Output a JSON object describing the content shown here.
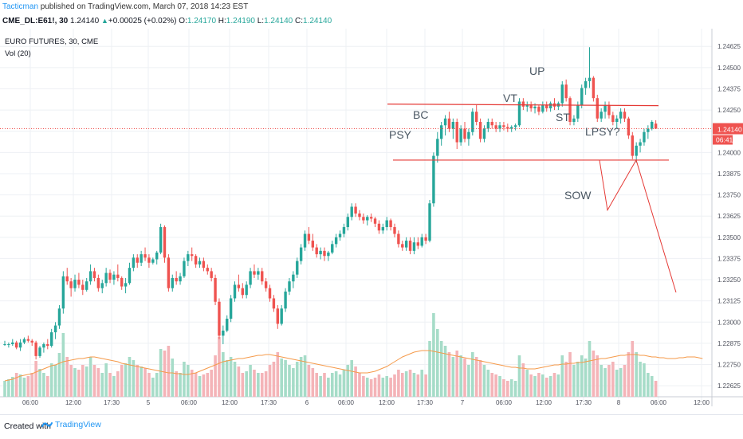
{
  "header": {
    "author": "Tacticman",
    "published": " published on TradingView.com, March 07, 2018 14:23 EST",
    "symbol": "CME_DL:E61!, 30",
    "last": "1.24140",
    "change": "+0.00025 (+0.02%)",
    "o_label": "O:",
    "o": "1.24170",
    "h_label": "H:",
    "h": "1.24190",
    "l_label": "L:",
    "l": "1.24140",
    "c_label": "C:",
    "c": "1.24140"
  },
  "footer": {
    "created": "Created with",
    "brand": "TradingView"
  },
  "colors": {
    "up": "#26a69a",
    "down": "#ef5350",
    "vol_up": "#a6dcc8",
    "vol_down": "#f4b4b8",
    "ma": "#f59a4a",
    "annotation": "#e53935",
    "price_line": "#ef5350"
  },
  "chart_data": {
    "type": "candlestick",
    "title": "EURO FUTURES, 30, CME",
    "volume_label": "Vol (20)",
    "y_ticks": [
      "1.24625",
      "1.24500",
      "1.24375",
      "1.24250",
      "1.24125",
      "1.24000",
      "1.23875",
      "1.23750",
      "1.23625",
      "1.23500",
      "1.23375",
      "1.23250",
      "1.23125",
      "1.23000",
      "1.22875",
      "1.22750",
      "1.22625"
    ],
    "ylim": [
      1.2256,
      1.2472
    ],
    "x_ticks": [
      "06:00",
      "12:00",
      "17:30",
      "5",
      "06:00",
      "12:00",
      "17:30",
      "6",
      "06:00",
      "12:00",
      "17:30",
      "7",
      "06:00",
      "12:00",
      "17:30",
      "8",
      "06:00",
      "12:00"
    ],
    "last_price": "1.24140",
    "countdown": "06:41",
    "annotations": [
      "PSY",
      "BC",
      "VT",
      "UP",
      "ST",
      "LPSY?",
      "SOW"
    ],
    "resistance_level": 1.24285,
    "support_level": 1.23955,
    "projection": [
      1.23955,
      1.2366,
      1.23955,
      1.23175
    ],
    "volume_ma": [
      20,
      21,
      22,
      24,
      26,
      27,
      28,
      29,
      31,
      33,
      35,
      37,
      39,
      40,
      42,
      44,
      45,
      46,
      47,
      48,
      48,
      49,
      50,
      50,
      49,
      48,
      47,
      46,
      45,
      44,
      42,
      41,
      40,
      39,
      38,
      37,
      36,
      35,
      34,
      33,
      32,
      31,
      30,
      30,
      29,
      29,
      28,
      28,
      29,
      30,
      32,
      34,
      36,
      38,
      40,
      42,
      44,
      45,
      46,
      47,
      48,
      48,
      49,
      50,
      51,
      52,
      52,
      53,
      53,
      52,
      51,
      50,
      49,
      48,
      47,
      46,
      45,
      44,
      43,
      42,
      41,
      40,
      39,
      38,
      37,
      36,
      35,
      34,
      33,
      32,
      31,
      30,
      30,
      30,
      31,
      32,
      34,
      36,
      38,
      41,
      44,
      47,
      50,
      52,
      54,
      56,
      57,
      58,
      58,
      58,
      57,
      56,
      55,
      54,
      53,
      52,
      51,
      50,
      49,
      48,
      47,
      46,
      45,
      44,
      43,
      42,
      41,
      40,
      39,
      38,
      37,
      37,
      36,
      36,
      35,
      35,
      35,
      36,
      37,
      38,
      39,
      40,
      40,
      41,
      41,
      42,
      42,
      43,
      43,
      44,
      45,
      46,
      47,
      48,
      48,
      49,
      50,
      51,
      52,
      52,
      53,
      53,
      53,
      52,
      52,
      51,
      50,
      50,
      49,
      49,
      48,
      48,
      48,
      49,
      49,
      50,
      50,
      50,
      49,
      48
    ],
    "candles": [
      [
        1.2287,
        1.2289,
        1.2286,
        1.2287,
        20
      ],
      [
        1.2287,
        1.2288,
        1.2285,
        1.2287,
        22
      ],
      [
        1.2287,
        1.229,
        1.2286,
        1.2288,
        25
      ],
      [
        1.2288,
        1.2289,
        1.2284,
        1.2285,
        30
      ],
      [
        1.2285,
        1.229,
        1.2283,
        1.2288,
        28
      ],
      [
        1.2288,
        1.2291,
        1.2287,
        1.229,
        24
      ],
      [
        1.229,
        1.2292,
        1.2288,
        1.2289,
        26
      ],
      [
        1.2289,
        1.229,
        1.2286,
        1.2288,
        30
      ],
      [
        1.2288,
        1.2289,
        1.2278,
        1.228,
        45
      ],
      [
        1.228,
        1.2286,
        1.2279,
        1.2285,
        35
      ],
      [
        1.2285,
        1.2288,
        1.2282,
        1.2287,
        30
      ],
      [
        1.2287,
        1.229,
        1.2284,
        1.2286,
        26
      ],
      [
        1.2286,
        1.2296,
        1.2285,
        1.2294,
        42
      ],
      [
        1.2294,
        1.23,
        1.229,
        1.2298,
        40
      ],
      [
        1.2298,
        1.231,
        1.2296,
        1.2308,
        55
      ],
      [
        1.2308,
        1.233,
        1.2305,
        1.2327,
        80
      ],
      [
        1.2327,
        1.2332,
        1.2322,
        1.2324,
        50
      ],
      [
        1.2324,
        1.2326,
        1.2315,
        1.232,
        40
      ],
      [
        1.232,
        1.2328,
        1.2318,
        1.2325,
        36
      ],
      [
        1.2325,
        1.2329,
        1.232,
        1.2322,
        34
      ],
      [
        1.2322,
        1.2325,
        1.2316,
        1.2319,
        40
      ],
      [
        1.2319,
        1.2326,
        1.2318,
        1.2324,
        38
      ],
      [
        1.2324,
        1.2334,
        1.2322,
        1.233,
        50
      ],
      [
        1.233,
        1.2332,
        1.2324,
        1.2326,
        40
      ],
      [
        1.2326,
        1.2328,
        1.2318,
        1.232,
        36
      ],
      [
        1.232,
        1.2325,
        1.2317,
        1.2323,
        30
      ],
      [
        1.2323,
        1.2332,
        1.2321,
        1.2329,
        42
      ],
      [
        1.2329,
        1.2331,
        1.2323,
        1.2325,
        30
      ],
      [
        1.2325,
        1.233,
        1.2322,
        1.2328,
        26
      ],
      [
        1.2328,
        1.2334,
        1.2324,
        1.2326,
        32
      ],
      [
        1.2326,
        1.2327,
        1.2319,
        1.2321,
        40
      ],
      [
        1.2321,
        1.2326,
        1.2317,
        1.2323,
        42
      ],
      [
        1.2323,
        1.2335,
        1.2322,
        1.2332,
        50
      ],
      [
        1.2332,
        1.234,
        1.233,
        1.2338,
        46
      ],
      [
        1.2338,
        1.234,
        1.2332,
        1.2335,
        40
      ],
      [
        1.2335,
        1.2342,
        1.2333,
        1.234,
        38
      ],
      [
        1.234,
        1.2344,
        1.2336,
        1.2338,
        36
      ],
      [
        1.2338,
        1.234,
        1.2332,
        1.2335,
        30
      ],
      [
        1.2335,
        1.2338,
        1.2334,
        1.2337,
        24
      ],
      [
        1.2337,
        1.2342,
        1.2334,
        1.2341,
        30
      ],
      [
        1.2341,
        1.2358,
        1.234,
        1.2356,
        60
      ],
      [
        1.2356,
        1.2357,
        1.2335,
        1.2338,
        58
      ],
      [
        1.2338,
        1.234,
        1.2318,
        1.232,
        64
      ],
      [
        1.232,
        1.2328,
        1.2318,
        1.2326,
        48
      ],
      [
        1.2326,
        1.233,
        1.2322,
        1.2324,
        32
      ],
      [
        1.2324,
        1.2329,
        1.2322,
        1.2327,
        30
      ],
      [
        1.2327,
        1.2338,
        1.2326,
        1.2336,
        44
      ],
      [
        1.2336,
        1.2342,
        1.2333,
        1.234,
        40
      ],
      [
        1.234,
        1.2344,
        1.2336,
        1.2339,
        34
      ],
      [
        1.2339,
        1.234,
        1.2332,
        1.2334,
        30
      ],
      [
        1.2334,
        1.2338,
        1.2332,
        1.2336,
        26
      ],
      [
        1.2336,
        1.2338,
        1.233,
        1.2332,
        28
      ],
      [
        1.2332,
        1.2334,
        1.2328,
        1.233,
        30
      ],
      [
        1.233,
        1.2332,
        1.2324,
        1.2326,
        34
      ],
      [
        1.2326,
        1.2328,
        1.231,
        1.2312,
        52
      ],
      [
        1.2312,
        1.2314,
        1.229,
        1.2292,
        75
      ],
      [
        1.2292,
        1.2298,
        1.2287,
        1.2295,
        56
      ],
      [
        1.2295,
        1.2304,
        1.2294,
        1.2302,
        46
      ],
      [
        1.2302,
        1.2316,
        1.23,
        1.2314,
        50
      ],
      [
        1.2314,
        1.2324,
        1.2312,
        1.2322,
        44
      ],
      [
        1.2322,
        1.2328,
        1.2318,
        1.232,
        38
      ],
      [
        1.232,
        1.2323,
        1.2314,
        1.2316,
        30
      ],
      [
        1.2316,
        1.2324,
        1.2314,
        1.2322,
        32
      ],
      [
        1.2322,
        1.2332,
        1.232,
        1.233,
        40
      ],
      [
        1.233,
        1.2334,
        1.2326,
        1.2328,
        34
      ],
      [
        1.2328,
        1.2332,
        1.2325,
        1.233,
        30
      ],
      [
        1.233,
        1.2332,
        1.2322,
        1.2324,
        30
      ],
      [
        1.2324,
        1.2326,
        1.2318,
        1.232,
        32
      ],
      [
        1.232,
        1.2322,
        1.2312,
        1.2314,
        40
      ],
      [
        1.2314,
        1.2316,
        1.2306,
        1.2308,
        44
      ],
      [
        1.2308,
        1.231,
        1.2296,
        1.2299,
        56
      ],
      [
        1.2299,
        1.231,
        1.2298,
        1.2308,
        48
      ],
      [
        1.2308,
        1.232,
        1.2306,
        1.2318,
        46
      ],
      [
        1.2318,
        1.2326,
        1.2316,
        1.2324,
        40
      ],
      [
        1.2324,
        1.233,
        1.232,
        1.2328,
        36
      ],
      [
        1.2328,
        1.2338,
        1.2326,
        1.2336,
        44
      ],
      [
        1.2336,
        1.2346,
        1.2334,
        1.2344,
        50
      ],
      [
        1.2344,
        1.2354,
        1.2342,
        1.2352,
        52
      ],
      [
        1.2352,
        1.2356,
        1.2346,
        1.2348,
        40
      ],
      [
        1.2348,
        1.2352,
        1.2342,
        1.2344,
        36
      ],
      [
        1.2344,
        1.2346,
        1.2338,
        1.234,
        30
      ],
      [
        1.234,
        1.2344,
        1.2337,
        1.2342,
        26
      ],
      [
        1.2342,
        1.2344,
        1.2336,
        1.2339,
        30
      ],
      [
        1.2339,
        1.2342,
        1.2336,
        1.2341,
        24
      ],
      [
        1.2341,
        1.2348,
        1.234,
        1.2346,
        30
      ],
      [
        1.2346,
        1.2352,
        1.2344,
        1.235,
        32
      ],
      [
        1.235,
        1.2354,
        1.2348,
        1.2352,
        28
      ],
      [
        1.2352,
        1.2358,
        1.235,
        1.2356,
        34
      ],
      [
        1.2356,
        1.2364,
        1.2354,
        1.2362,
        40
      ],
      [
        1.2362,
        1.237,
        1.236,
        1.2368,
        46
      ],
      [
        1.2368,
        1.237,
        1.2362,
        1.2364,
        38
      ],
      [
        1.2364,
        1.2366,
        1.236,
        1.2362,
        30
      ],
      [
        1.2362,
        1.2364,
        1.2358,
        1.236,
        26
      ],
      [
        1.236,
        1.2363,
        1.2357,
        1.2362,
        24
      ],
      [
        1.2362,
        1.2364,
        1.2359,
        1.2361,
        22
      ],
      [
        1.2361,
        1.2362,
        1.2356,
        1.2358,
        24
      ],
      [
        1.2358,
        1.236,
        1.2352,
        1.2354,
        28
      ],
      [
        1.2354,
        1.2358,
        1.2352,
        1.2356,
        24
      ],
      [
        1.2356,
        1.2362,
        1.2354,
        1.236,
        26
      ],
      [
        1.236,
        1.2361,
        1.2354,
        1.2356,
        24
      ],
      [
        1.2356,
        1.2358,
        1.235,
        1.2352,
        28
      ],
      [
        1.2352,
        1.2354,
        1.2344,
        1.2346,
        34
      ],
      [
        1.2346,
        1.2348,
        1.2342,
        1.2344,
        30
      ],
      [
        1.2344,
        1.235,
        1.2342,
        1.2348,
        32
      ],
      [
        1.2348,
        1.235,
        1.234,
        1.2342,
        34
      ],
      [
        1.2342,
        1.235,
        1.234,
        1.2347,
        30
      ],
      [
        1.2347,
        1.235,
        1.2343,
        1.2345,
        28
      ],
      [
        1.2345,
        1.2352,
        1.2344,
        1.235,
        34
      ],
      [
        1.235,
        1.2352,
        1.2346,
        1.2348,
        28
      ],
      [
        1.2348,
        1.2372,
        1.2347,
        1.237,
        70
      ],
      [
        1.237,
        1.24,
        1.2368,
        1.2398,
        105
      ],
      [
        1.2398,
        1.2412,
        1.2394,
        1.2408,
        85
      ],
      [
        1.2408,
        1.2418,
        1.2404,
        1.2416,
        70
      ],
      [
        1.2416,
        1.2422,
        1.241,
        1.242,
        64
      ],
      [
        1.242,
        1.2424,
        1.2412,
        1.2414,
        56
      ],
      [
        1.2414,
        1.242,
        1.2408,
        1.2418,
        50
      ],
      [
        1.2418,
        1.242,
        1.2402,
        1.2406,
        58
      ],
      [
        1.2406,
        1.2416,
        1.2404,
        1.2414,
        52
      ],
      [
        1.2414,
        1.2418,
        1.2406,
        1.2408,
        48
      ],
      [
        1.2408,
        1.2414,
        1.2404,
        1.2412,
        40
      ],
      [
        1.2412,
        1.2426,
        1.241,
        1.2424,
        56
      ],
      [
        1.2424,
        1.2428,
        1.2416,
        1.2418,
        50
      ],
      [
        1.2418,
        1.242,
        1.2406,
        1.2408,
        46
      ],
      [
        1.2408,
        1.2416,
        1.2406,
        1.2414,
        40
      ],
      [
        1.2414,
        1.242,
        1.2412,
        1.2418,
        34
      ],
      [
        1.2418,
        1.242,
        1.2414,
        1.2416,
        30
      ],
      [
        1.2416,
        1.2418,
        1.2412,
        1.2414,
        28
      ],
      [
        1.2414,
        1.2418,
        1.2412,
        1.2416,
        26
      ],
      [
        1.2416,
        1.2418,
        1.2413,
        1.2415,
        22
      ],
      [
        1.2415,
        1.2417,
        1.2412,
        1.2414,
        20
      ],
      [
        1.2414,
        1.2416,
        1.2412,
        1.2415,
        22
      ],
      [
        1.2415,
        1.2417,
        1.2413,
        1.2416,
        20
      ],
      [
        1.2416,
        1.2432,
        1.2415,
        1.243,
        52
      ],
      [
        1.243,
        1.2432,
        1.2425,
        1.2427,
        42
      ],
      [
        1.2427,
        1.243,
        1.2424,
        1.2428,
        34
      ],
      [
        1.2428,
        1.243,
        1.2424,
        1.2426,
        28
      ],
      [
        1.2426,
        1.2429,
        1.2423,
        1.2427,
        26
      ],
      [
        1.2427,
        1.2428,
        1.2422,
        1.2424,
        30
      ],
      [
        1.2424,
        1.243,
        1.2423,
        1.2428,
        28
      ],
      [
        1.2428,
        1.243,
        1.2424,
        1.2426,
        24
      ],
      [
        1.2426,
        1.243,
        1.2424,
        1.2429,
        26
      ],
      [
        1.2429,
        1.2432,
        1.2425,
        1.2427,
        30
      ],
      [
        1.2427,
        1.243,
        1.2425,
        1.2429,
        28
      ],
      [
        1.2429,
        1.2442,
        1.2427,
        1.244,
        52
      ],
      [
        1.244,
        1.2443,
        1.243,
        1.2432,
        44
      ],
      [
        1.2432,
        1.2433,
        1.2416,
        1.2418,
        56
      ],
      [
        1.2418,
        1.2422,
        1.2416,
        1.242,
        40
      ],
      [
        1.242,
        1.243,
        1.2418,
        1.2428,
        44
      ],
      [
        1.2428,
        1.244,
        1.2426,
        1.2438,
        52
      ],
      [
        1.2438,
        1.2444,
        1.2434,
        1.2442,
        48
      ],
      [
        1.2442,
        1.2462,
        1.2438,
        1.2444,
        70
      ],
      [
        1.2444,
        1.2445,
        1.243,
        1.2432,
        58
      ],
      [
        1.2432,
        1.2434,
        1.2418,
        1.242,
        52
      ],
      [
        1.242,
        1.2426,
        1.2418,
        1.2424,
        40
      ],
      [
        1.2424,
        1.243,
        1.242,
        1.2428,
        36
      ],
      [
        1.2428,
        1.243,
        1.242,
        1.2422,
        40
      ],
      [
        1.2422,
        1.2424,
        1.2416,
        1.2418,
        44
      ],
      [
        1.2418,
        1.2422,
        1.2414,
        1.242,
        34
      ],
      [
        1.242,
        1.2426,
        1.2417,
        1.2424,
        36
      ],
      [
        1.2424,
        1.2426,
        1.2418,
        1.242,
        40
      ],
      [
        1.242,
        1.2421,
        1.2408,
        1.241,
        56
      ],
      [
        1.241,
        1.2412,
        1.2396,
        1.2398,
        70
      ],
      [
        1.2398,
        1.2406,
        1.2394,
        1.2404,
        56
      ],
      [
        1.2404,
        1.2408,
        1.24,
        1.2406,
        44
      ],
      [
        1.2406,
        1.2414,
        1.2404,
        1.2412,
        42
      ],
      [
        1.2412,
        1.2416,
        1.2408,
        1.2414,
        30
      ],
      [
        1.2414,
        1.2419,
        1.2413,
        1.2418,
        26
      ],
      [
        1.2417,
        1.2419,
        1.2414,
        1.2414,
        20
      ]
    ]
  }
}
